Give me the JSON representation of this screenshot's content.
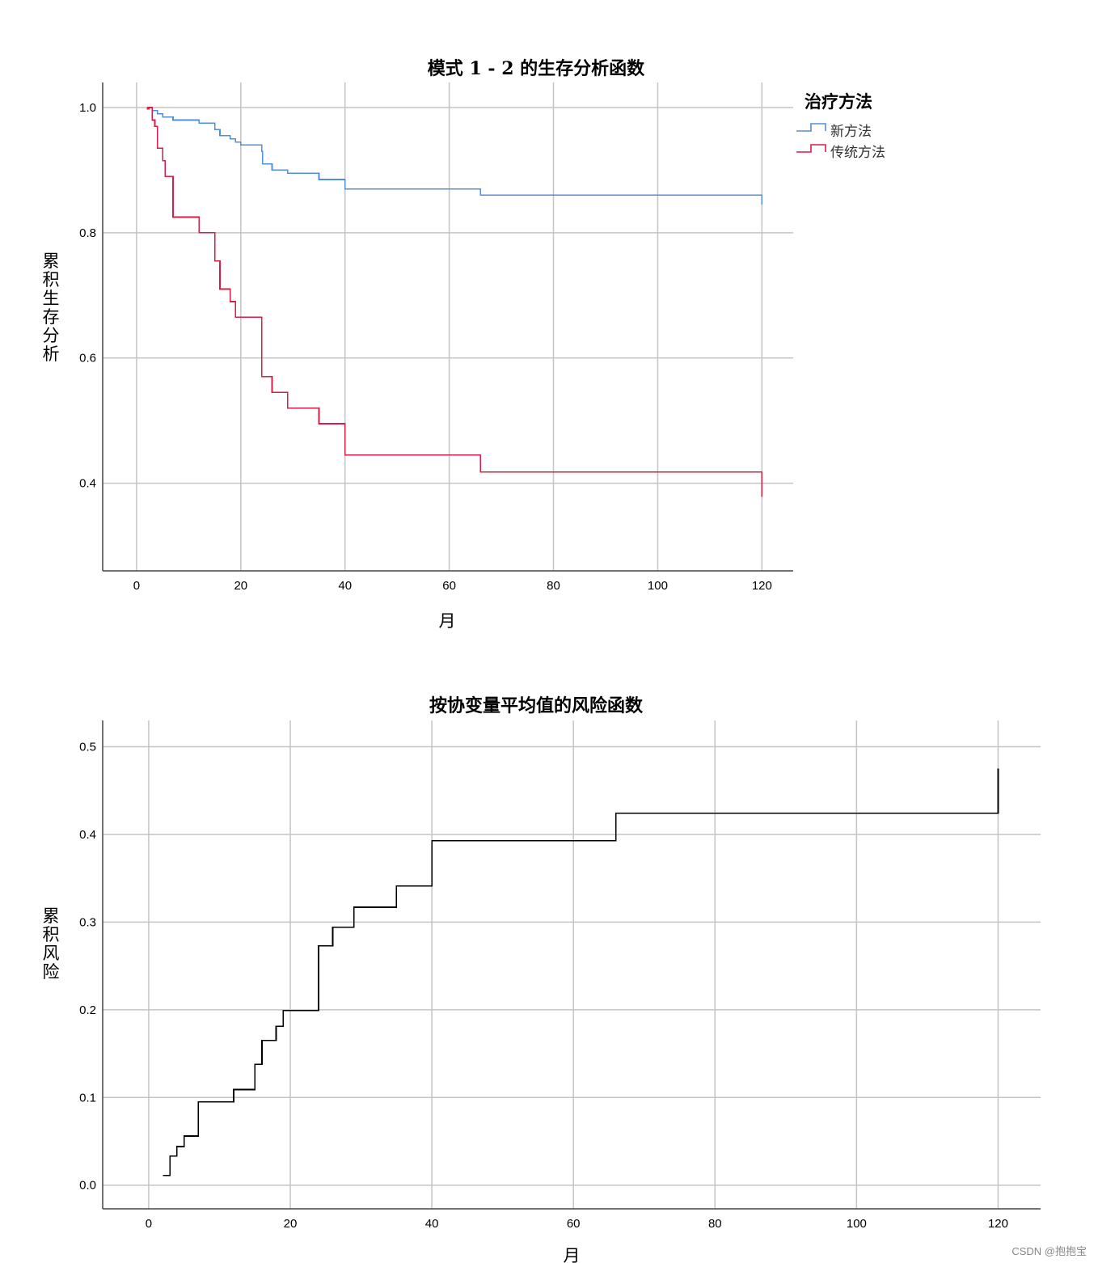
{
  "chart_data": [
    {
      "type": "line",
      "step": true,
      "title": "模式 1 - 2 的生存分析函数",
      "xlabel": "月",
      "ylabel": "累积生存分析",
      "xlim": [
        -6.5,
        126
      ],
      "ylim": [
        0.26,
        1.04
      ],
      "xticks": [
        "0",
        "20",
        "40",
        "60",
        "80",
        "100",
        "120"
      ],
      "yticks": [
        "0.4",
        "0.6",
        "0.8",
        "1.0"
      ],
      "grid": true,
      "legend": {
        "title": "治疗方法",
        "position": "right"
      },
      "series": [
        {
          "name": "新方法",
          "color": "#4f8fdd",
          "points": [
            [
              2,
              1.0
            ],
            [
              3,
              0.995
            ],
            [
              4,
              0.99
            ],
            [
              5,
              0.985
            ],
            [
              7,
              0.98
            ],
            [
              12,
              0.975
            ],
            [
              15,
              0.965
            ],
            [
              16,
              0.955
            ],
            [
              18,
              0.95
            ],
            [
              19,
              0.945
            ],
            [
              20,
              0.94
            ],
            [
              24,
              0.93
            ],
            [
              24.2,
              0.91
            ],
            [
              26,
              0.9
            ],
            [
              29,
              0.895
            ],
            [
              35,
              0.885
            ],
            [
              40,
              0.87
            ],
            [
              66,
              0.86
            ],
            [
              120,
              0.86
            ],
            [
              120,
              0.845
            ]
          ]
        },
        {
          "name": "传统方法",
          "color": "#d61f46",
          "points": [
            [
              2,
              1.0
            ],
            [
              2.1,
              0.998
            ],
            [
              2.3,
              0.998
            ],
            [
              2.4,
              1.0
            ],
            [
              2.6,
              1.0
            ],
            [
              3,
              0.98
            ],
            [
              3.2,
              0.98
            ],
            [
              3.5,
              0.97
            ],
            [
              4,
              0.935
            ],
            [
              5,
              0.915
            ],
            [
              5.5,
              0.89
            ],
            [
              7,
              0.825
            ],
            [
              12,
              0.8
            ],
            [
              15,
              0.755
            ],
            [
              16,
              0.71
            ],
            [
              18,
              0.69
            ],
            [
              19,
              0.665
            ],
            [
              24,
              0.57
            ],
            [
              26,
              0.545
            ],
            [
              29,
              0.52
            ],
            [
              35,
              0.495
            ],
            [
              40,
              0.445
            ],
            [
              66,
              0.418
            ],
            [
              120,
              0.418
            ],
            [
              120,
              0.378
            ]
          ]
        }
      ]
    },
    {
      "type": "line",
      "step": true,
      "title": "按协变量平均值的风险函数",
      "xlabel": "月",
      "ylabel": "累积风险",
      "xlim": [
        -6.5,
        126
      ],
      "ylim": [
        -0.027,
        0.53
      ],
      "xticks": [
        "0",
        "20",
        "40",
        "60",
        "80",
        "100",
        "120"
      ],
      "yticks": [
        "0.0",
        "0.1",
        "0.2",
        "0.3",
        "0.4",
        "0.5"
      ],
      "grid": true,
      "series": [
        {
          "color": "#000000",
          "points": [
            [
              2,
              0.011
            ],
            [
              3,
              0.033
            ],
            [
              4,
              0.044
            ],
            [
              5,
              0.056
            ],
            [
              7,
              0.095
            ],
            [
              12,
              0.109
            ],
            [
              15,
              0.138
            ],
            [
              16,
              0.165
            ],
            [
              18,
              0.181
            ],
            [
              19,
              0.199
            ],
            [
              24,
              0.273
            ],
            [
              26,
              0.294
            ],
            [
              29,
              0.317
            ],
            [
              35,
              0.341
            ],
            [
              40,
              0.393
            ],
            [
              66,
              0.424
            ],
            [
              120,
              0.424
            ],
            [
              120,
              0.475
            ]
          ]
        }
      ]
    }
  ],
  "watermark": "CSDN @抱抱宝"
}
